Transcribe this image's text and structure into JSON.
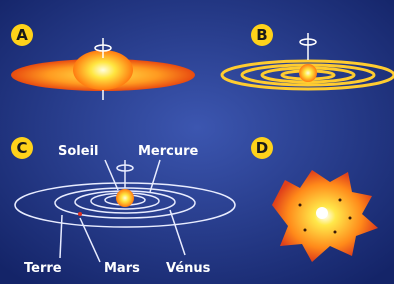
{
  "panels": [
    "A",
    "B",
    "C",
    "D"
  ],
  "labels": {
    "sun": "Soleil",
    "mercury": "Mercure",
    "earth": "Terre",
    "mars": "Mars",
    "venus": "Vénus"
  }
}
